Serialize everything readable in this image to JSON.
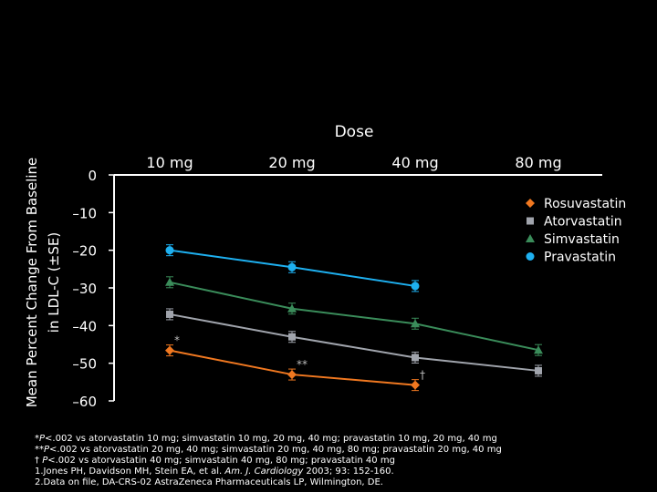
{
  "chart_data": {
    "type": "line",
    "title": "",
    "xlabel": "Dose",
    "ylabel": "Mean Percent Change From Baseline in LDL-C (±SE)",
    "categories": [
      "10 mg",
      "20 mg",
      "40 mg",
      "80 mg"
    ],
    "y_ticks": [
      "0",
      "–10",
      "–20",
      "–30",
      "–40",
      "–50",
      "–60"
    ],
    "ylim": [
      -60,
      0
    ],
    "grid": false,
    "legend_position": "right",
    "series": [
      {
        "name": "Rosuvastatin",
        "color": "#f07820",
        "marker": "diamond",
        "values": [
          -46.6,
          -53.0,
          -55.8,
          null
        ],
        "annotations": [
          "*",
          "**",
          "†",
          ""
        ]
      },
      {
        "name": "Atorvastatin",
        "color": "#a0a4ac",
        "marker": "square",
        "values": [
          -37.0,
          -43.0,
          -48.5,
          -52.0
        ],
        "annotations": [
          "",
          "",
          "",
          ""
        ]
      },
      {
        "name": "Simvastatin",
        "color": "#3a8c5a",
        "marker": "triangle",
        "values": [
          -28.5,
          -35.5,
          -39.5,
          -46.5
        ],
        "annotations": [
          "",
          "",
          "",
          ""
        ]
      },
      {
        "name": "Pravastatin",
        "color": "#1eb0f0",
        "marker": "circle",
        "values": [
          -20.0,
          -24.5,
          -29.5,
          null
        ],
        "annotations": [
          "",
          "",
          "",
          ""
        ]
      }
    ]
  },
  "footnotes": [
    {
      "mark": "*",
      "mark_italic": "P",
      "text": "<.002 vs atorvastatin 10 mg; simvastatin 10 mg, 20 mg, 40 mg; pravastatin 10 mg, 20 mg, 40 mg"
    },
    {
      "mark": "**",
      "mark_italic": "P",
      "text": "<.002 vs atorvastatin 20 mg, 40 mg; simvastatin 20 mg, 40 mg, 80 mg; pravastatin 20 mg, 40 mg"
    },
    {
      "mark": "† ",
      "mark_italic": "P",
      "text": "<.002 vs atorvastatin 40 mg; simvastatin 40 mg, 80 mg; pravastatin 40 mg"
    },
    {
      "mark": "1.Jones PH, Davidson MH, Stein EA, et al. ",
      "mark_italic": "Am. J. Cardiology",
      "text": " 2003; 93: 152-160."
    },
    {
      "mark": "2.Data on file, DA-CRS-02 AstraZeneca Pharmaceuticals LP, Wilmington, DE.",
      "mark_italic": "",
      "text": ""
    }
  ]
}
